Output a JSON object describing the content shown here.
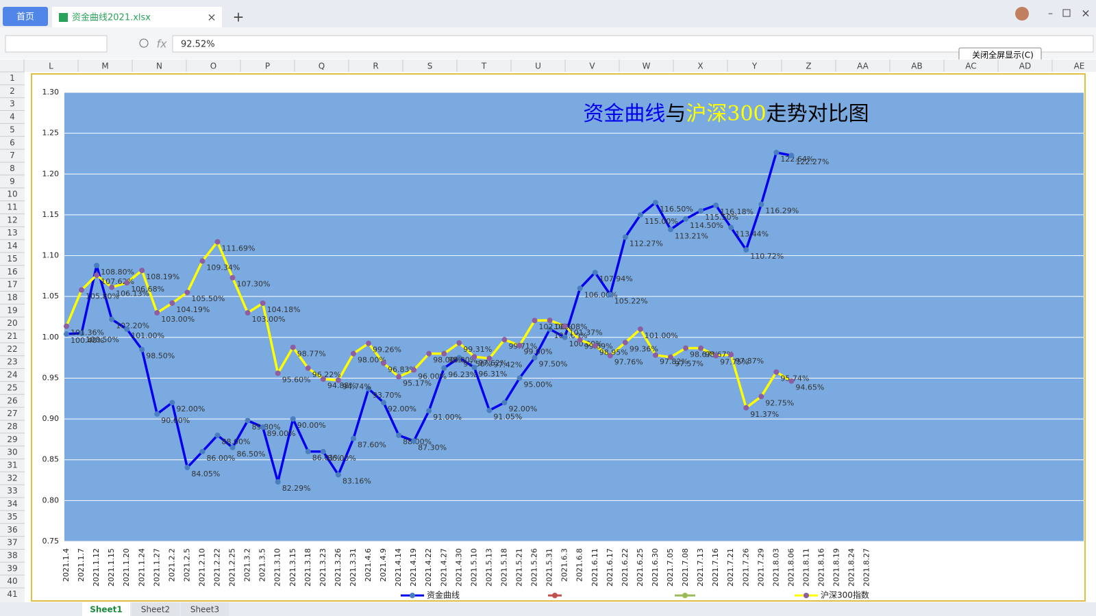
{
  "tabs": {
    "home": "首页",
    "file": "资金曲线2021.xlsx"
  },
  "formula_bar": {
    "fx": "fx",
    "value": "92.52%"
  },
  "button": "关闭全屏显示(C)",
  "columns": [
    "L",
    "M",
    "N",
    "O",
    "P",
    "Q",
    "R",
    "S",
    "T",
    "U",
    "V",
    "W",
    "X",
    "Y",
    "Z",
    "AA",
    "AB",
    "AC",
    "AD",
    "AE"
  ],
  "rows": [
    1,
    2,
    3,
    4,
    5,
    6,
    7,
    8,
    9,
    10,
    11,
    12,
    13,
    14,
    15,
    16,
    17,
    18,
    19,
    20,
    21,
    22,
    23,
    24,
    25,
    26,
    27,
    28,
    29,
    30,
    31,
    32,
    33,
    34,
    35,
    36,
    37,
    38,
    39,
    40,
    41
  ],
  "sheets": [
    "Sheet1",
    "Sheet2",
    "Sheet3"
  ],
  "chart_data": {
    "type": "line",
    "title_parts": [
      {
        "text": "资金曲线",
        "color": "#0000ee"
      },
      {
        "text": "与",
        "color": "#000000"
      },
      {
        "text": "沪深300",
        "color": "#ffff00"
      },
      {
        "text": "走势对比图",
        "color": "#000000"
      }
    ],
    "categories": [
      "2021.1.4",
      "2021.1.7",
      "2021.1.12",
      "2021.1.15",
      "2021.1.20",
      "2021.1.24",
      "2021.1.27",
      "2021.2.2",
      "2021.2.5",
      "2021.2.10",
      "2021.2.22",
      "2021.2.25",
      "2021.3.2",
      "2021.3.5",
      "2021.3.10",
      "2021.3.15",
      "2021.3.18",
      "2021.3.23",
      "2021.3.26",
      "2021.3.31",
      "2021.4.6",
      "2021.4.9",
      "2021.4.14",
      "2021.4.19",
      "2021.4.22",
      "2021.4.27",
      "2021.4.30",
      "2021.5.10",
      "2021.5.13",
      "2021.5.18",
      "2021.5.21",
      "2021.5.26",
      "2021.5.31",
      "2021.6.3",
      "2021.6.8",
      "2021.6.11",
      "2021.6.17",
      "2021.6.22",
      "2021.6.25",
      "2021.6.30",
      "2021.7.05",
      "2021.7.08",
      "2021.7.13",
      "2021.7.16",
      "2021.7.21",
      "2021.7.26",
      "2021.7.29",
      "2021.8.03",
      "2021.8.06",
      "2021.8.11",
      "2021.8.16",
      "2021.8.19",
      "2021.8.24",
      "2021.8.27"
    ],
    "ylim": [
      0.75,
      1.3
    ],
    "yticks": [
      {
        "value": 0.75,
        "label": "0.75"
      },
      {
        "value": 0.8,
        "label": "0.80"
      },
      {
        "value": 0.85,
        "label": "0.85"
      },
      {
        "value": 0.9,
        "label": "0.90"
      },
      {
        "value": 0.95,
        "label": "0.95"
      },
      {
        "value": 1.0,
        "label": "1.00"
      },
      {
        "value": 1.05,
        "label": "1.05"
      },
      {
        "value": 1.1,
        "label": "1.10"
      },
      {
        "value": 1.15,
        "label": "1.15"
      },
      {
        "value": 1.2,
        "label": "1.20"
      },
      {
        "value": 1.25,
        "label": "1.25"
      },
      {
        "value": 1.3,
        "label": "1.30"
      }
    ],
    "grid": true,
    "series": [
      {
        "name": "资金曲线",
        "color": "#0000ee",
        "marker": "#4a7ec0",
        "values": [
          1.004,
          1.005,
          1.088,
          1.022,
          1.01,
          0.985,
          0.906,
          0.92,
          0.8405,
          0.86,
          0.88,
          0.865,
          0.898,
          0.89,
          0.8229,
          0.9,
          0.8601,
          0.86,
          0.8316,
          0.876,
          0.937,
          0.92,
          0.88,
          0.873,
          0.91,
          0.9623,
          0.975,
          0.9631,
          0.9105,
          0.92,
          0.95,
          0.975,
          1.01,
          1.0,
          1.06,
          1.0794,
          1.0522,
          1.1227,
          1.15,
          1.165,
          1.1321,
          1.145,
          1.155,
          1.1618,
          1.1344,
          1.1072,
          1.1629,
          1.2264,
          1.2227,
          null,
          null,
          null,
          null,
          null
        ],
        "value_labels": [
          "100.40%",
          "100.50%",
          "108.80%",
          "102.20%",
          "101.00%",
          "98.50%",
          "90.60%",
          "92.00%",
          "84.05%",
          "86.00%",
          "88.00%",
          "86.50%",
          "89.80%",
          "89.00%",
          "82.29%",
          "90.00%",
          "86.01%",
          "86.00%",
          "83.16%",
          "87.60%",
          "93.70%",
          "92.00%",
          "88.00%",
          "87.30%",
          "91.00%",
          "96.23%",
          "97.50%",
          "96.31%",
          "91.05%",
          "92.00%",
          "95.00%",
          "97.50%",
          "101.00%",
          "100.00%",
          "106.00%",
          "107.94%",
          "105.22%",
          "112.27%",
          "115.00%",
          "116.50%",
          "113.21%",
          "114.50%",
          "115.50%",
          "116.18%",
          "113.44%",
          "110.72%",
          "116.29%",
          "122.64%",
          "122.27%",
          null,
          null,
          null,
          null,
          null
        ]
      },
      {
        "name": "沪深300指数",
        "color": "#ffff00",
        "marker": "#8e5ea2",
        "values": [
          1.0136,
          1.058,
          1.0762,
          1.0613,
          1.0668,
          1.0819,
          1.03,
          1.0419,
          1.055,
          1.0934,
          1.1169,
          1.073,
          1.03,
          1.0418,
          0.956,
          0.9877,
          0.9622,
          0.9488,
          0.9474,
          0.98,
          0.9926,
          0.9683,
          0.9517,
          0.96,
          0.98,
          0.98,
          0.9931,
          0.9762,
          0.9742,
          0.9971,
          0.99,
          1.0206,
          1.0208,
          1.0137,
          0.9969,
          0.9895,
          0.9776,
          0.9936,
          1.01,
          0.9782,
          0.9757,
          0.9867,
          0.9867,
          0.9775,
          0.9787,
          0.9137,
          0.9275,
          0.9574,
          0.9465,
          null,
          null,
          null,
          null,
          null
        ],
        "value_labels": [
          "101.36%",
          "105.80%",
          "107.62%",
          "106.13%",
          "106.68%",
          "108.19%",
          "103.00%",
          "104.19%",
          "105.50%",
          "109.34%",
          "111.69%",
          "107.30%",
          "103.00%",
          "104.18%",
          "95.60%",
          "98.77%",
          "96.22%",
          "94.88%",
          "94.74%",
          "98.00%",
          "99.26%",
          "96.83%",
          "95.17%",
          "96.00%",
          "98.00%",
          "98.00%",
          "99.31%",
          "97.62%",
          "97.42%",
          "99.71%",
          "99.00%",
          "102.06%",
          "102.08%",
          "101.37%",
          "99.69%",
          "98.95%",
          "97.76%",
          "99.36%",
          "101.00%",
          "97.82%",
          "97.57%",
          "98.67%",
          "98.67%",
          "97.75%",
          "97.87%",
          "91.37%",
          "92.75%",
          "95.74%",
          "94.65%",
          null,
          null,
          null,
          null,
          null
        ]
      }
    ]
  }
}
